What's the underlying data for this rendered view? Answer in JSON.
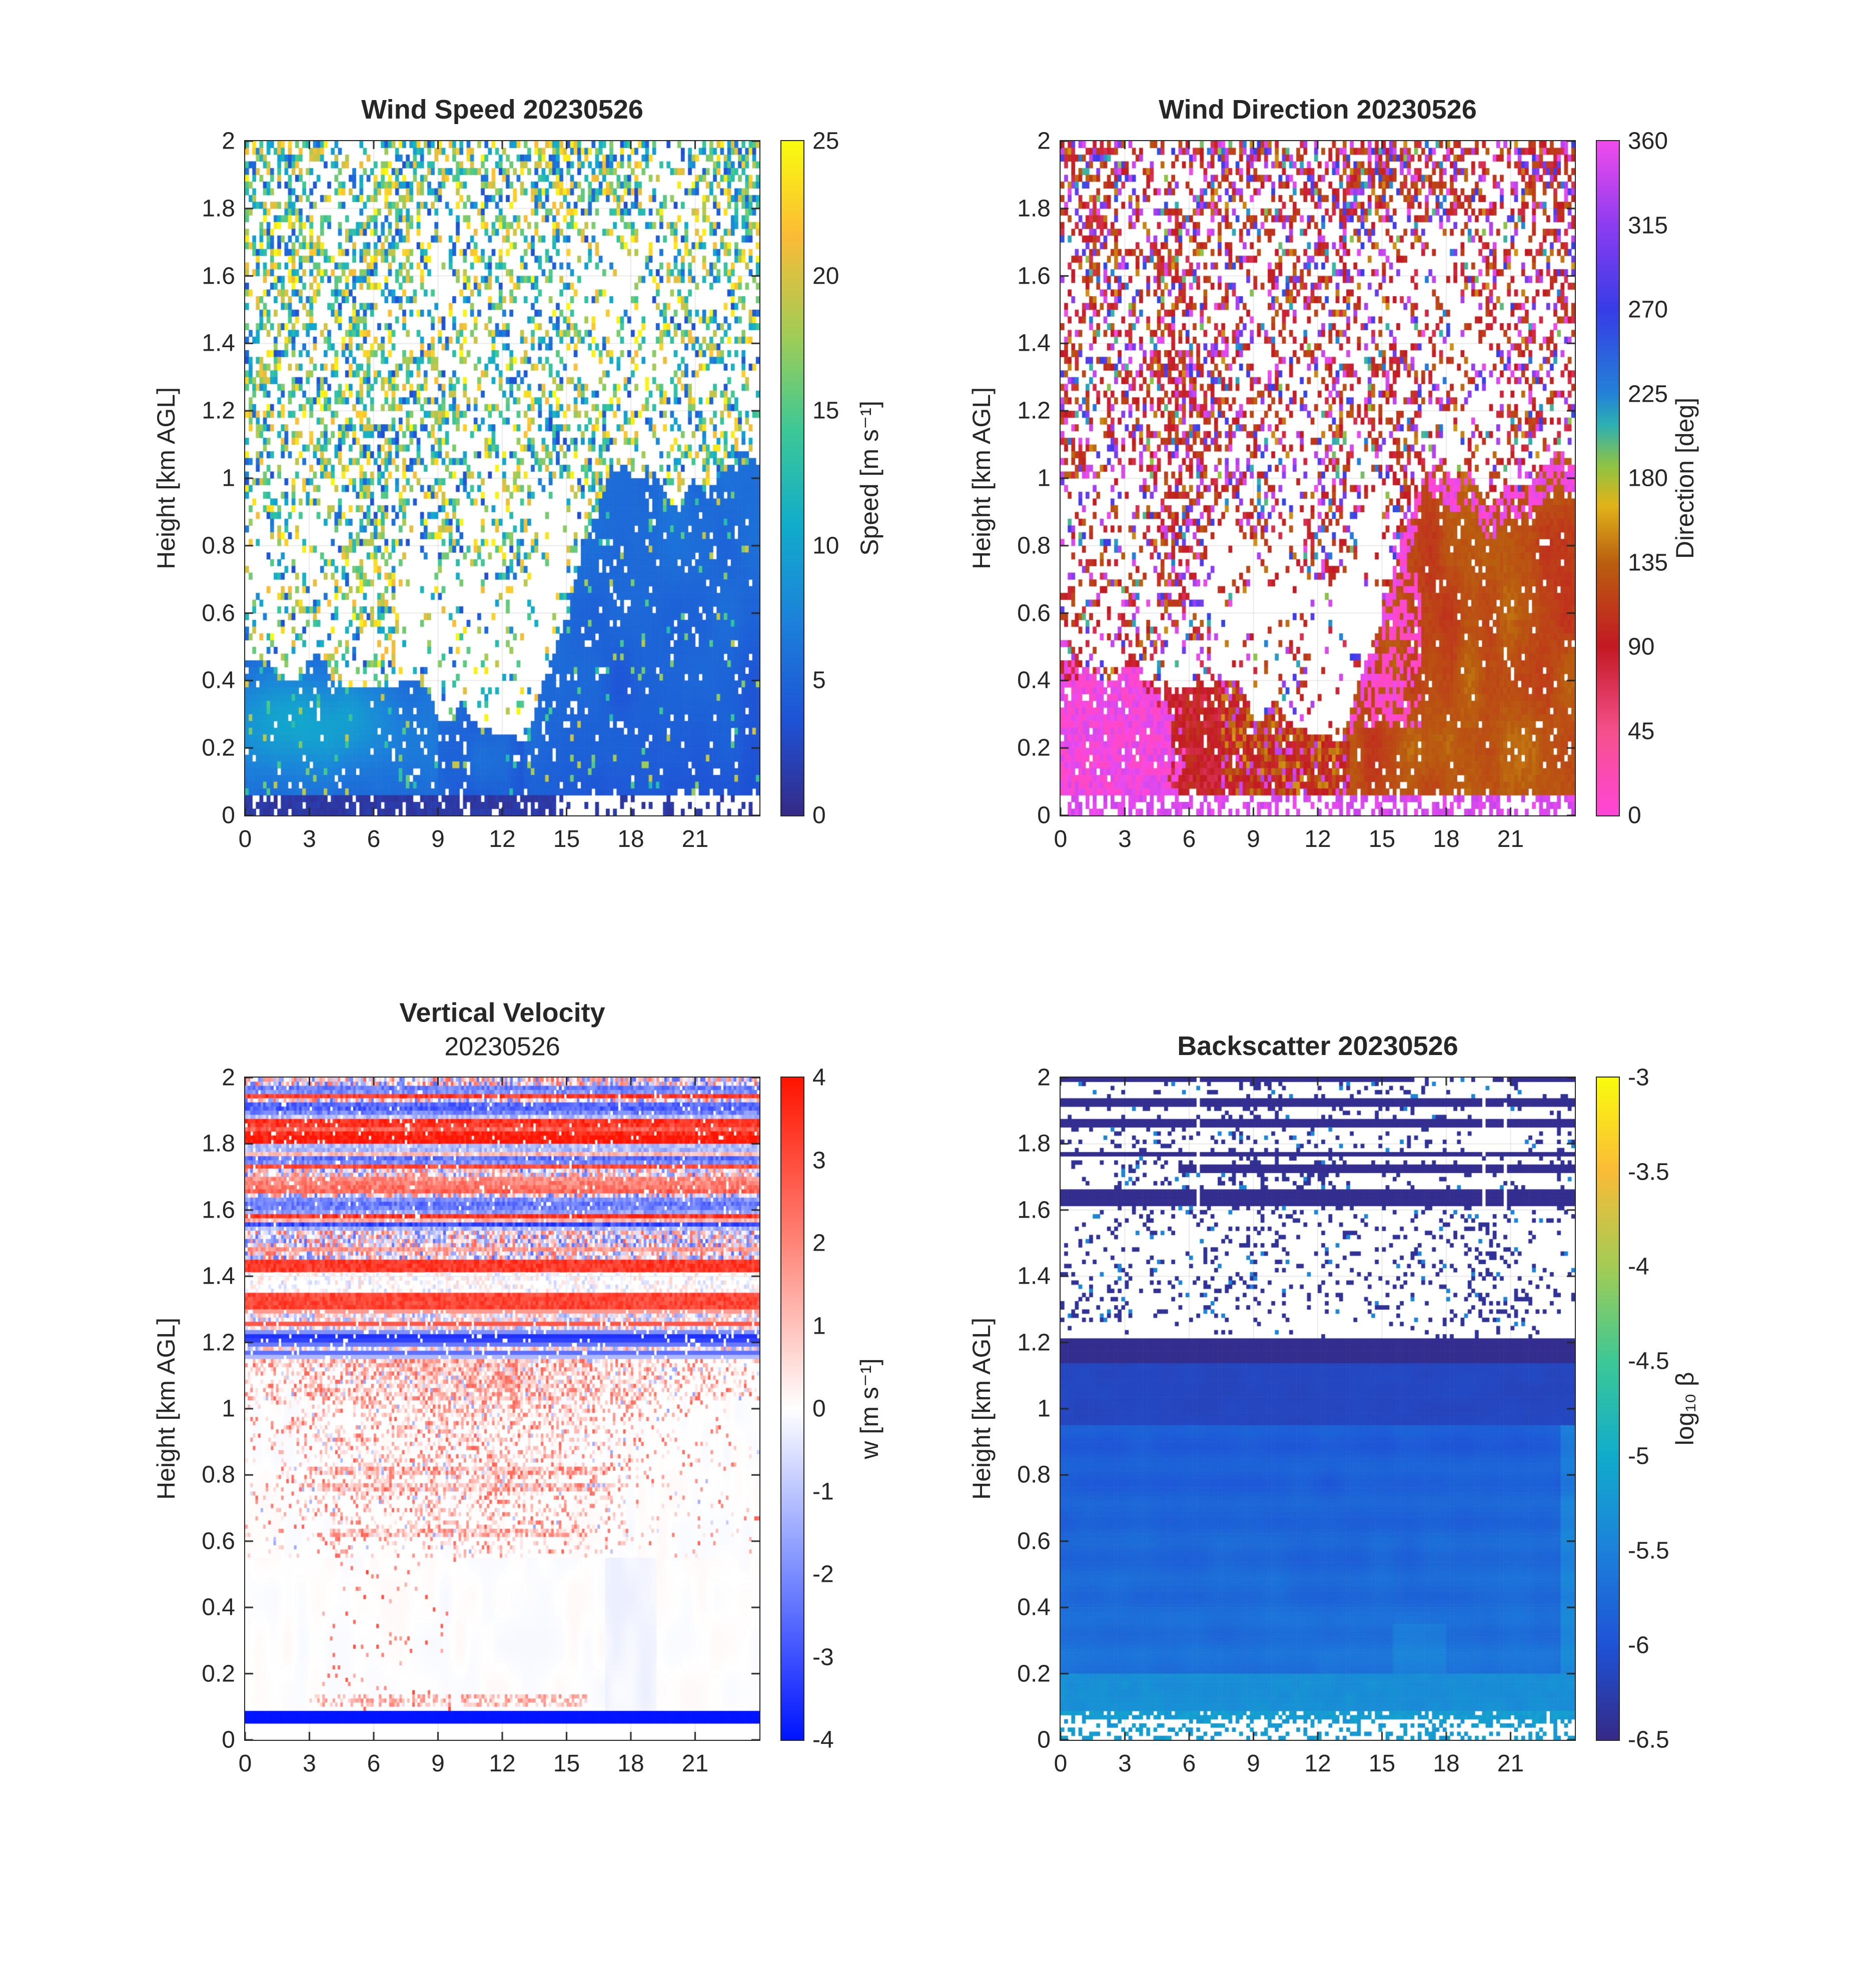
{
  "figure": {
    "background": "#ffffff"
  },
  "colormaps": {
    "parula": [
      [
        0,
        "#352a87"
      ],
      [
        0.14,
        "#1e52d6"
      ],
      [
        0.29,
        "#1c82da"
      ],
      [
        0.43,
        "#11accb"
      ],
      [
        0.57,
        "#3cc896"
      ],
      [
        0.71,
        "#a0cc56"
      ],
      [
        0.86,
        "#fbbb36"
      ],
      [
        1,
        "#f9fb0e"
      ]
    ],
    "direction": [
      [
        0,
        "#ff46d7"
      ],
      [
        0.125,
        "#f5508c"
      ],
      [
        0.25,
        "#c31923"
      ],
      [
        0.375,
        "#b95f0f"
      ],
      [
        0.46,
        "#e1b419"
      ],
      [
        0.52,
        "#8cc346"
      ],
      [
        0.58,
        "#2dafb4"
      ],
      [
        0.625,
        "#2382d7"
      ],
      [
        0.75,
        "#373ce6"
      ],
      [
        0.875,
        "#8c3cf0"
      ],
      [
        1,
        "#f04beb"
      ]
    ],
    "bwr": [
      [
        0,
        "#0014ff"
      ],
      [
        0.25,
        "#7a8cff"
      ],
      [
        0.5,
        "#ffffff"
      ],
      [
        0.75,
        "#ff8578"
      ],
      [
        1,
        "#ff1400"
      ]
    ]
  },
  "chart_data": [
    {
      "type": "heatmap",
      "generator": "wind_speed",
      "title": "Wind Speed 20230526",
      "subtitle": "",
      "xlabel": "",
      "ylabel": "Height [km AGL]",
      "xlim": [
        0,
        24
      ],
      "ylim": [
        0,
        2
      ],
      "xticks": [
        "0",
        "3",
        "6",
        "9",
        "12",
        "15",
        "18",
        "21"
      ],
      "yticks": [
        "0",
        "0.2",
        "0.4",
        "0.6",
        "0.8",
        "1",
        "1.2",
        "1.4",
        "1.6",
        "1.8",
        "2"
      ],
      "grid": true,
      "nx": 144,
      "ny": 100,
      "colorbar": {
        "label": "Speed [m s⁻¹]",
        "min": 0,
        "max": 25,
        "ticks": [
          "0",
          "5",
          "10",
          "15",
          "20",
          "25"
        ],
        "colormap": "parula"
      },
      "description": "Doppler lidar horizontal wind speed vs time of day (hours 0-24) and height 0-2 km AGL on 20230526. Dense low-level blue region (3-8 m/s) below ~0.5 km in hours 0-10 with a teal maximum near 10 m/s around 0.2-0.4 km in hours 0-7; a blue boundary-layer wedge (~5 m/s) grows after hour 13 reaching ~1 km by hour 17 and persists to hour 24; above, noisy scattered retrievals of 10-25 m/s (teal/green/yellow speckle) with white data gaps; thin dark-blue near-zero strip at the surface."
    },
    {
      "type": "heatmap",
      "generator": "wind_direction",
      "title": "Wind Direction 20230526",
      "subtitle": "",
      "xlabel": "",
      "ylabel": "Height [km AGL]",
      "xlim": [
        0,
        24
      ],
      "ylim": [
        0,
        2
      ],
      "xticks": [
        "0",
        "3",
        "6",
        "9",
        "12",
        "15",
        "18",
        "21"
      ],
      "yticks": [
        "0",
        "0.2",
        "0.4",
        "0.6",
        "0.8",
        "1",
        "1.2",
        "1.4",
        "1.6",
        "1.8",
        "2"
      ],
      "grid": true,
      "nx": 144,
      "ny": 100,
      "colorbar": {
        "label": "Direction [deg]",
        "min": 0,
        "max": 360,
        "ticks": [
          "0",
          "45",
          "90",
          "135",
          "180",
          "225",
          "270",
          "315",
          "360"
        ],
        "colormap": "direction"
      },
      "description": "Wind direction vs time and height on 20230526. Bright magenta/pink northerly blob (~350-360 deg) below 0.5 km during hours 0-7 with red rim; midday shallow layer of red/orange easterly-southeasterly (80-150 deg); after hour 13 an orange-brown wedge (~100-140 deg) rises to ~1 km with magenta-pink streaks near its top edge around hours 14-17; scattered noisy points aloft are mostly crimson/red (~90 deg) with pink, purple, blue and occasional teal values."
    },
    {
      "type": "heatmap",
      "generator": "vertical_velocity",
      "title": "Vertical Velocity",
      "subtitle": "20230526",
      "xlabel": "",
      "ylabel": "Height [km AGL]",
      "xlim": [
        0,
        24
      ],
      "ylim": [
        0,
        2
      ],
      "xticks": [
        "0",
        "3",
        "6",
        "9",
        "12",
        "15",
        "18",
        "21"
      ],
      "yticks": [
        "0",
        "0.2",
        "0.4",
        "0.6",
        "0.8",
        "1",
        "1.2",
        "1.4",
        "1.6",
        "1.8",
        "2"
      ],
      "grid": true,
      "nx": 200,
      "ny": 160,
      "colorbar": {
        "label": "w [m s⁻¹]",
        "min": -4,
        "max": 4,
        "ticks": [
          "-4",
          "-3",
          "-2",
          "-1",
          "0",
          "1",
          "2",
          "3",
          "4"
        ],
        "colormap": "bwr"
      },
      "description": "Vertical velocity w vs time and height on 20230526. Above ~1.15 km: dense noisy horizontal bands alternating strong red (+2 to +4 m/s) and blue (-2 to -4 m/s), with solid red lines near 1.30 and 1.42 km and a pale band between them. 0.55-1.15 km: red updraft speckle (0.5-2.5 m/s) densest hours 4-16 with thin red lines near 0.62, 0.75 and 0.80 km. Below 0.55 km: near-zero white/faint field with sparse red dots hours 4-10 and a solid dark-blue line (~-4 m/s) at ~0.07 km across all hours."
    },
    {
      "type": "heatmap",
      "generator": "backscatter",
      "title": "Backscatter 20230526",
      "subtitle": "",
      "xlabel": "",
      "ylabel": "Height [km AGL]",
      "xlim": [
        0,
        24
      ],
      "ylim": [
        0,
        2
      ],
      "xticks": [
        "0",
        "3",
        "6",
        "9",
        "12",
        "15",
        "18",
        "21"
      ],
      "yticks": [
        "0",
        "0.2",
        "0.4",
        "0.6",
        "0.8",
        "1",
        "1.2",
        "1.4",
        "1.6",
        "1.8",
        "2"
      ],
      "grid": true,
      "nx": 144,
      "ny": 160,
      "colorbar": {
        "label": "log₁₀ β",
        "min": -6.5,
        "max": -3,
        "ticks": [
          "-3",
          "-3.5",
          "-4",
          "-4.5",
          "-5",
          "-5.5",
          "-6",
          "-6.5"
        ],
        "colormap": "parula"
      },
      "description": "Attenuated backscatter log10(beta) vs time and height on 20230526. Solid aerosol layer below ~1.13 km: blue values near -5.7 to -5.9 with a lighter cyan band (-5.4) near 0.1-0.2 km and darker blue (-6.2) from 0.95-1.13 km; thick dark-navy stripe (-6.5) at 1.14-1.21 km; additional full-width navy stripes near 1.63, 1.72, 1.77, 1.86, 1.92 and 2.0 km; sparse dark-blue speckle clusters between 1.2 and 2.0 km; speckled cyan dashes at the surface row."
    }
  ]
}
